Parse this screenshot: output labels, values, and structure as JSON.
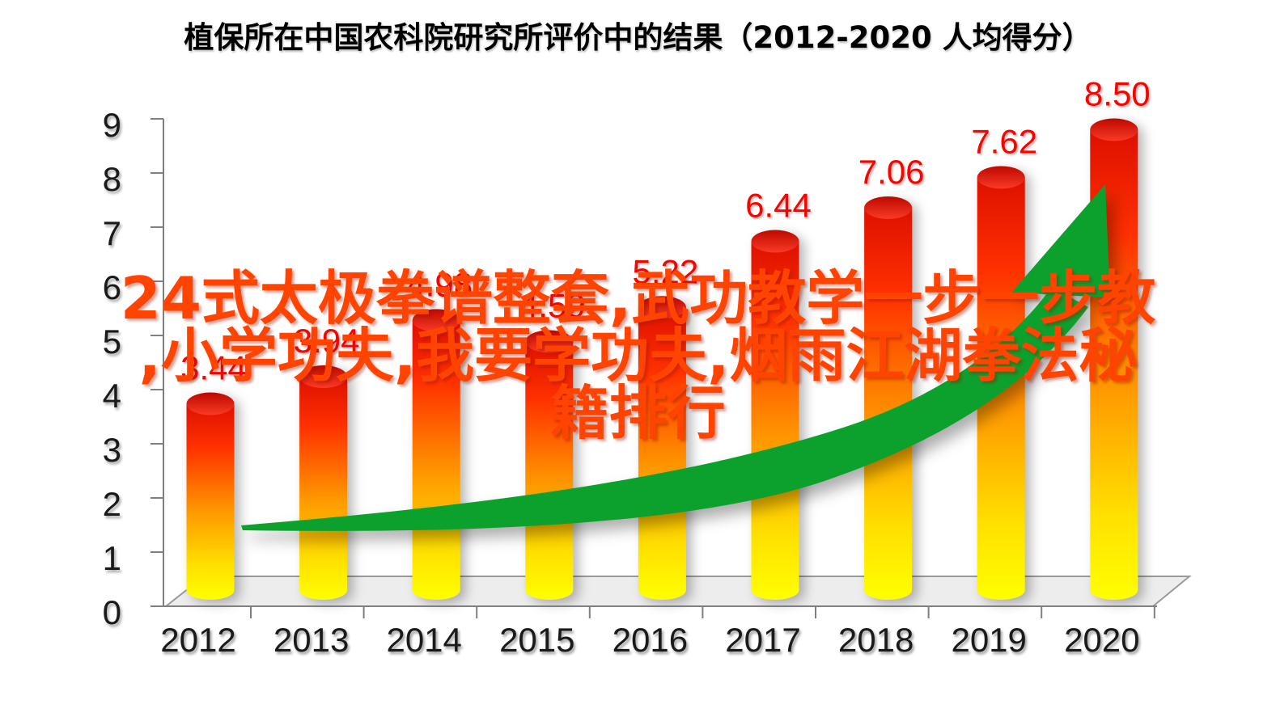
{
  "chart_data": {
    "type": "bar",
    "title": "植保所在中国农科院研究所评价中的结果（2012-2020  人均得分）",
    "categories": [
      "2012",
      "2013",
      "2014",
      "2015",
      "2016",
      "2017",
      "2018",
      "2019",
      "2020"
    ],
    "values": [
      3.44,
      3.94,
      4.98,
      4.59,
      5.22,
      6.44,
      7.06,
      7.62,
      8.5
    ],
    "data_labels": [
      "3.44",
      "3.94",
      "4.98",
      "4.59",
      "5.22",
      "6.44",
      "7.06",
      "7.62",
      "8.50"
    ],
    "xlabel": "",
    "ylabel": "",
    "ylim": [
      0,
      9
    ],
    "y_ticks": [
      0,
      1,
      2,
      3,
      4,
      5,
      6,
      7,
      8,
      9
    ],
    "grid": false,
    "legend": false,
    "bar_style": "3d-cylinder-vertical-gradient",
    "trend_arrow": "green swoosh rising left-to-right ending in arrowhead",
    "colors": {
      "bar_top": "#dd1000",
      "bar_middle": "#ff8a00",
      "bar_bottom": "#ffff00",
      "cylinder_cap": "#d40d00",
      "data_label": "#f50500",
      "arrow": "#0ca12c",
      "axis": "#808080",
      "floor": "#ededed",
      "tick_label": "#1a1a1a",
      "title": "#000000"
    }
  },
  "watermark": {
    "color": "#ff4300",
    "lines": [
      "24式太极拳谱整套,武功教学一步一步教",
      ",小学功夫,我要学功夫,烟雨江湖拳法秘",
      "籍排行"
    ]
  }
}
